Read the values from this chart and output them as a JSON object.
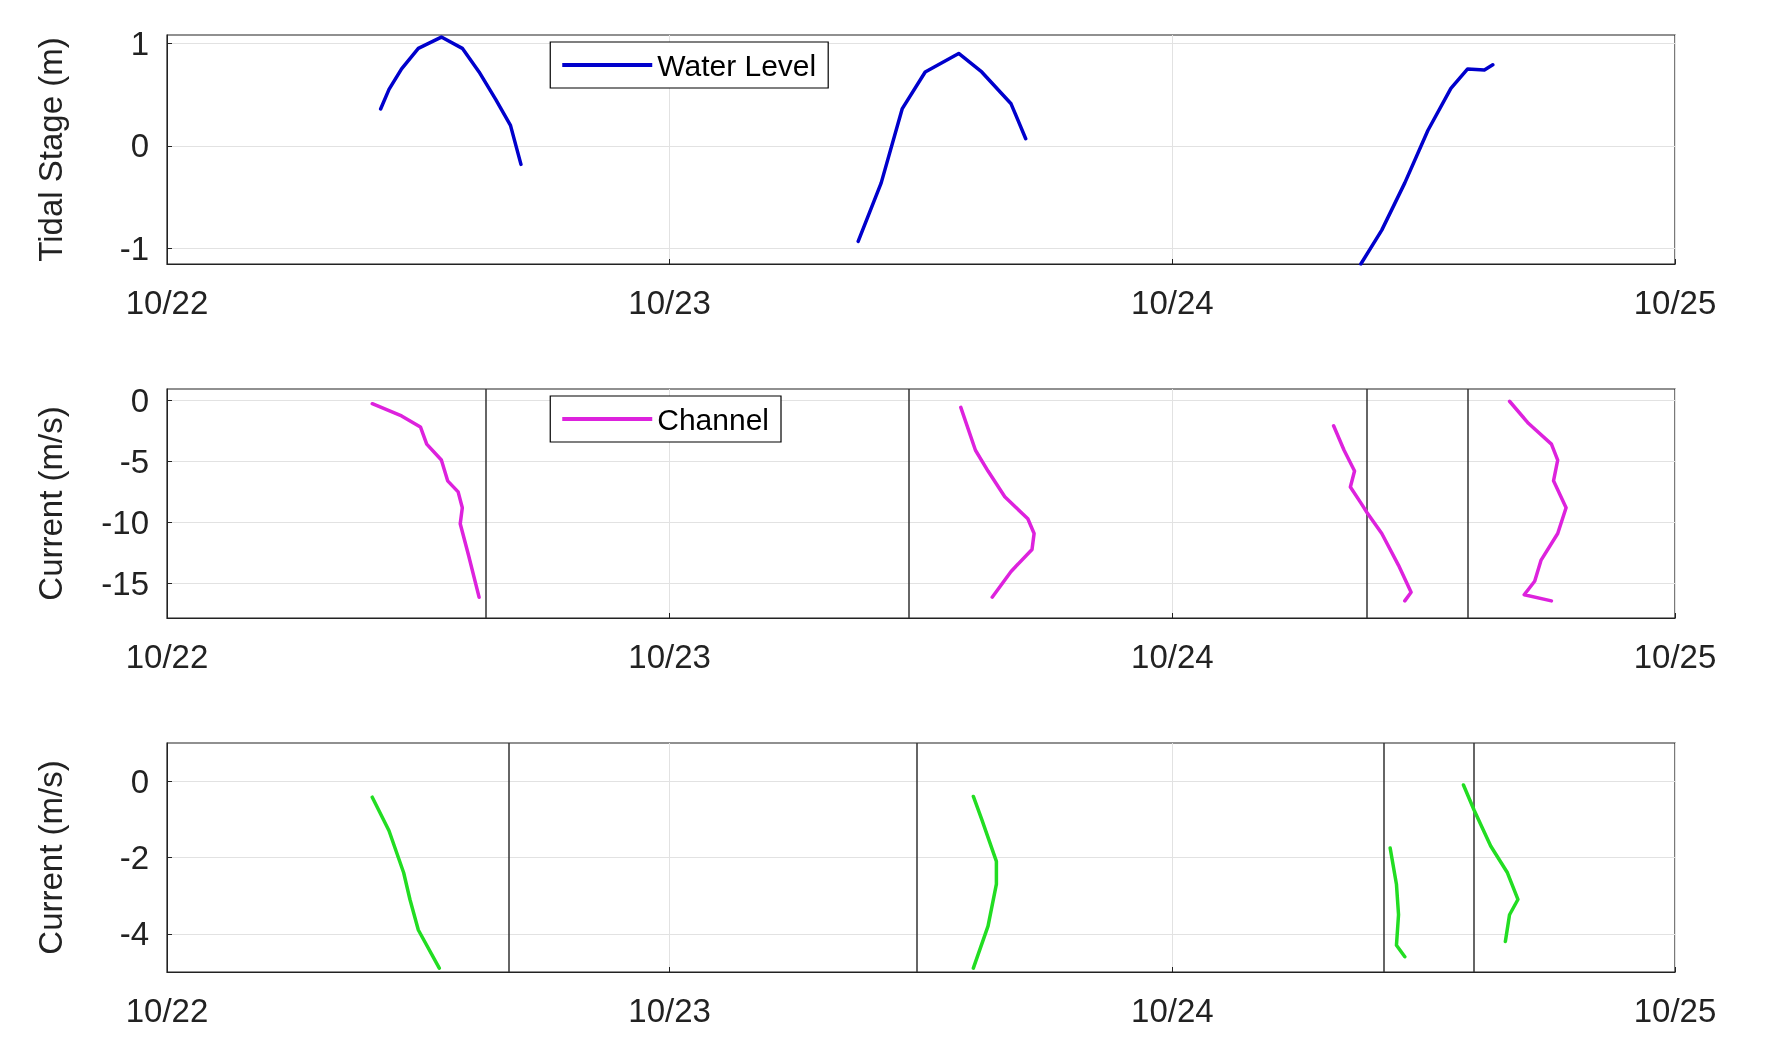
{
  "chart_data": [
    {
      "type": "line",
      "ylabel": "Tidal Stage (m)",
      "xlim": [
        "--10-22",
        "--10-25"
      ],
      "xticks": [
        {
          "value": "--10-22",
          "label": "10/22"
        },
        {
          "value": "--10-23",
          "label": "10/23"
        },
        {
          "value": "--10-24",
          "label": "10/24"
        },
        {
          "value": "--10-25",
          "label": "10/25"
        }
      ],
      "ylim": [
        -1.15,
        1.08
      ],
      "yticks": [
        -1,
        0,
        1
      ],
      "grid": true,
      "legend": "top left",
      "marker": "none",
      "line_style": "solid",
      "series": [
        {
          "name": "Water Level",
          "color": "#0000cc",
          "x": [
            "--10-22T10:12",
            "--10-22T10:36",
            "--10-22T11:12",
            "--10-22T12:00",
            "--10-22T13:06",
            "--10-22T14:06",
            "--10-22T14:54",
            "--10-22T15:42",
            "--10-22T16:24",
            "--10-22T16:54",
            "--10-23T01:00",
            "--10-23T09:00",
            "--10-23T10:06",
            "--10-23T11:06",
            "--10-23T12:12",
            "--10-23T13:48",
            "--10-23T14:54",
            "--10-23T16:18",
            "--10-23T17:00",
            "--10-24T01:00",
            "--10-24T09:00",
            "--10-24T10:00",
            "--10-24T11:06",
            "--10-24T12:12",
            "--10-24T13:18",
            "--10-24T14:06",
            "--10-24T14:54",
            "--10-24T15:18"
          ],
          "values": [
            0.36,
            0.55,
            0.75,
            0.95,
            1.06,
            0.95,
            0.72,
            0.45,
            0.2,
            -0.18,
            null,
            -0.93,
            -0.36,
            0.36,
            0.72,
            0.9,
            0.72,
            0.41,
            0.07,
            null,
            -1.15,
            -0.82,
            -0.36,
            0.15,
            0.56,
            0.75,
            0.74,
            0.79
          ]
        }
      ]
    },
    {
      "type": "line",
      "ylabel": "Current (m/s)",
      "xlim": [
        "--10-22",
        "--10-25"
      ],
      "xticks": [
        {
          "value": "--10-22",
          "label": "10/22"
        },
        {
          "value": "--10-23",
          "label": "10/23"
        },
        {
          "value": "--10-24",
          "label": "10/24"
        },
        {
          "value": "--10-25",
          "label": "10/25"
        }
      ],
      "ylim": [
        -17.8,
        0.9
      ],
      "yticks": [
        -15,
        -10,
        -5,
        0
      ],
      "grid": true,
      "legend": "top left",
      "marker": "none",
      "line_style": "solid",
      "series": [
        {
          "name": "Channel",
          "color": "#dd22dd",
          "x": [
            "--10-22T09:48",
            "--10-22T11:12",
            "--10-22T12:06",
            "--10-22T12:24",
            "--10-22T13:06",
            "--10-22T13:24",
            "--10-22T13:54",
            "--10-22T14:06",
            "--10-22T14:00",
            "--10-22T14:24",
            "--10-22T14:54",
            "--10-23T01:00",
            "--10-23T13:54",
            "--10-23T14:36",
            "--10-23T15:12",
            "--10-23T16:00",
            "--10-23T17:06",
            "--10-23T17:24",
            "--10-23T17:18",
            "--10-23T16:18",
            "--10-23T15:24",
            "--10-24T00:00",
            "--10-24T07:42",
            "--10-24T08:12",
            "--10-24T08:42",
            "--10-24T08:30",
            "--10-24T09:00",
            "--10-24T09:18",
            "--10-24T10:00",
            "--10-24T10:48",
            "--10-24T11:24",
            "--10-24T11:06",
            "--10-24T14:00",
            "--10-24T16:06",
            "--10-24T17:00",
            "--10-24T18:06",
            "--10-24T18:24",
            "--10-24T18:12",
            "--10-24T18:48",
            "--10-24T18:24",
            "--10-24T17:36",
            "--10-24T17:18",
            "--10-24T16:48",
            "--10-24T18:06"
          ],
          "values": [
            -0.3,
            -1.3,
            -2.2,
            -3.6,
            -4.9,
            -6.6,
            -7.5,
            -8.8,
            -10.1,
            -12.7,
            -16.1,
            null,
            -0.6,
            -4.1,
            -5.8,
            -7.9,
            -9.7,
            -10.9,
            -12.2,
            -14.0,
            -16.1,
            null,
            -2.1,
            -4.1,
            -5.8,
            -7.1,
            -8.4,
            -9.2,
            -10.9,
            -13.5,
            -15.7,
            -16.4,
            null,
            -0.1,
            -1.9,
            -3.6,
            -4.9,
            -6.6,
            -8.8,
            -10.9,
            -13.1,
            -14.8,
            -15.9,
            -16.4
          ]
        }
      ],
      "ref_lines": [
        {
          "axis": "x",
          "value": "--10-22T15:12",
          "color": "#333333"
        },
        {
          "axis": "x",
          "value": "--10-23T11:24",
          "color": "#333333"
        },
        {
          "axis": "x",
          "value": "--10-24T09:18",
          "color": "#333333"
        },
        {
          "axis": "x",
          "value": "--10-24T14:06",
          "color": "#333333"
        }
      ]
    },
    {
      "type": "line",
      "ylabel": "Current (m/s)",
      "xlim": [
        "--10-22",
        "--10-25"
      ],
      "xticks": [
        {
          "value": "--10-22",
          "label": "10/22"
        },
        {
          "value": "--10-23",
          "label": "10/23"
        },
        {
          "value": "--10-24",
          "label": "10/24"
        },
        {
          "value": "--10-25",
          "label": "10/25"
        }
      ],
      "ylim": [
        -5,
        1
      ],
      "yticks": [
        -4,
        -2,
        0
      ],
      "grid": true,
      "marker": "none",
      "line_style": "solid",
      "series": [
        {
          "color": "#22dd22",
          "x": [
            "--10-22T09:48",
            "--10-22T10:36",
            "--10-22T11:18",
            "--10-22T11:36",
            "--10-22T12:00",
            "--10-22T13:00",
            "--10-23T01:00",
            "--10-23T14:30",
            "--10-23T14:54",
            "--10-23T15:36",
            "--10-23T15:36",
            "--10-23T15:12",
            "--10-23T14:30",
            "--10-24T00:00",
            "--10-24T10:24",
            "--10-24T10:42",
            "--10-24T10:48",
            "--10-24T10:42",
            "--10-24T11:06",
            "--10-24T12:00",
            "--10-24T13:54",
            "--10-24T14:24",
            "--10-24T15:12",
            "--10-24T16:00",
            "--10-24T16:30",
            "--10-24T16:06",
            "--10-24T15:54"
          ],
          "values": [
            -0.42,
            -1.3,
            -2.4,
            -3.1,
            -3.9,
            -4.9,
            null,
            -0.4,
            -1.0,
            -2.1,
            -2.7,
            -3.8,
            -4.9,
            null,
            -1.75,
            -2.7,
            -3.5,
            -4.3,
            -4.6,
            null,
            -0.1,
            -0.75,
            -1.7,
            -2.4,
            -3.1,
            -3.5,
            -4.2
          ]
        }
      ],
      "ref_lines": [
        {
          "axis": "x",
          "value": "--10-22T16:18",
          "color": "#333333"
        },
        {
          "axis": "x",
          "value": "--10-23T11:48",
          "color": "#333333"
        },
        {
          "axis": "x",
          "value": "--10-24T10:06",
          "color": "#333333"
        },
        {
          "axis": "x",
          "value": "--10-24T14:24",
          "color": "#333333"
        }
      ]
    }
  ]
}
